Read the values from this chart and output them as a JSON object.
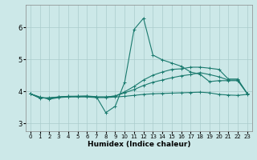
{
  "title": "",
  "xlabel": "Humidex (Indice chaleur)",
  "bg_color": "#cce8e8",
  "line_color": "#1a7a6e",
  "grid_color": "#aacccc",
  "xlim": [
    -0.5,
    23.5
  ],
  "ylim": [
    2.75,
    6.7
  ],
  "yticks": [
    3,
    4,
    5,
    6
  ],
  "xticks": [
    0,
    1,
    2,
    3,
    4,
    5,
    6,
    7,
    8,
    9,
    10,
    11,
    12,
    13,
    14,
    15,
    16,
    17,
    18,
    19,
    20,
    21,
    22,
    23
  ],
  "series": [
    [
      3.92,
      3.82,
      3.75,
      3.8,
      3.82,
      3.82,
      3.82,
      3.8,
      3.8,
      3.82,
      3.84,
      3.87,
      3.9,
      3.92,
      3.93,
      3.94,
      3.95,
      3.96,
      3.97,
      3.95,
      3.9,
      3.88,
      3.87,
      3.9
    ],
    [
      3.92,
      3.78,
      3.8,
      3.82,
      3.83,
      3.84,
      3.85,
      3.83,
      3.33,
      3.53,
      4.28,
      5.93,
      6.28,
      5.13,
      4.98,
      4.88,
      4.78,
      4.6,
      4.53,
      4.3,
      4.33,
      4.33,
      4.33,
      3.93
    ],
    [
      3.92,
      3.8,
      3.78,
      3.82,
      3.84,
      3.84,
      3.84,
      3.82,
      3.82,
      3.85,
      3.98,
      4.15,
      4.35,
      4.5,
      4.6,
      4.68,
      4.7,
      4.75,
      4.75,
      4.72,
      4.68,
      4.38,
      4.38,
      3.93
    ],
    [
      3.92,
      3.8,
      3.78,
      3.82,
      3.84,
      3.84,
      3.84,
      3.82,
      3.82,
      3.85,
      3.95,
      4.05,
      4.18,
      4.28,
      4.35,
      4.42,
      4.48,
      4.52,
      4.58,
      4.52,
      4.45,
      4.35,
      4.35,
      3.93
    ]
  ],
  "marker": "+",
  "markersize": 3,
  "linewidth": 0.8,
  "tick_fontsize_x": 5,
  "tick_fontsize_y": 6,
  "xlabel_fontsize": 6.5,
  "xlabel_fontweight": "bold"
}
